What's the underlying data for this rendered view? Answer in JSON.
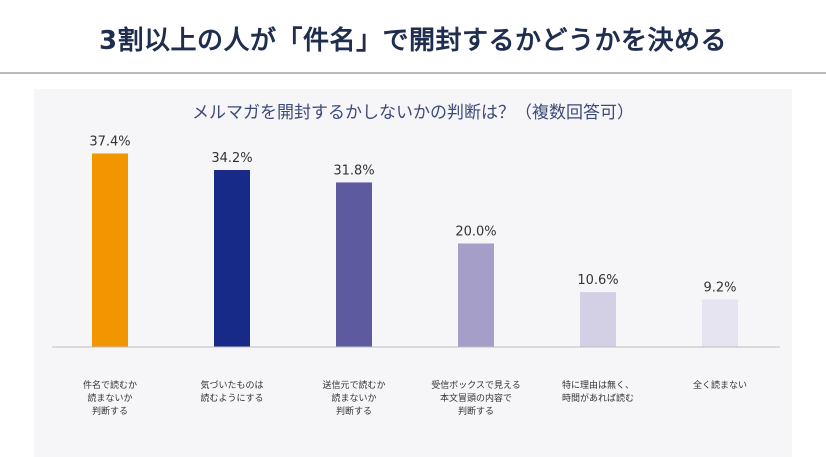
{
  "header": {
    "title": "3割以上の人が「件名」で開封するかどうかを決める"
  },
  "chart_data": {
    "type": "bar",
    "title": "メルマガを開封するかしないかの判断は？（複数回答可）",
    "categories": [
      [
        "件名で読むか",
        "読まないか",
        "判断する"
      ],
      [
        "気づいたものは",
        "読むようにする"
      ],
      [
        "送信元で読むか",
        "読まないか",
        "判断する"
      ],
      [
        "受信ボックスで見える",
        "本文冒頭の内容で",
        "判断する"
      ],
      [
        "特に理由は無く、",
        "時間があれば読む"
      ],
      [
        "全く読まない"
      ]
    ],
    "values": [
      37.4,
      34.2,
      31.8,
      20.0,
      10.6,
      9.2
    ],
    "value_labels": [
      "37.4%",
      "34.2%",
      "31.8%",
      "20.0%",
      "10.6%",
      "9.2%"
    ],
    "ylim": [
      0,
      40
    ],
    "colors": [
      "#f29600",
      "#172a87",
      "#5e5a9f",
      "#a59ec9",
      "#d3cfe5",
      "#e6e4f1"
    ],
    "grid": false,
    "legend": "none",
    "xlabel": "",
    "ylabel": ""
  }
}
